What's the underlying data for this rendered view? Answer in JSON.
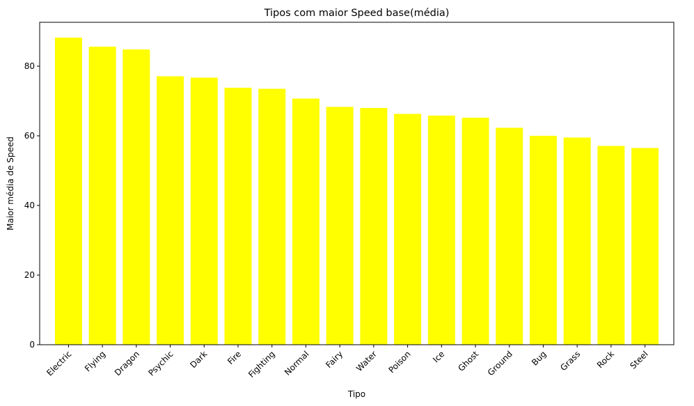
{
  "chart_data": {
    "type": "bar",
    "title": "Tipos com maior Speed base(média)",
    "xlabel": "Tipo",
    "ylabel": "Maior média de Speed",
    "categories": [
      "Electric",
      "Flying",
      "Dragon",
      "Psychic",
      "Dark",
      "Fire",
      "Fighting",
      "Normal",
      "Fairy",
      "Water",
      "Poison",
      "Ice",
      "Ghost",
      "Ground",
      "Bug",
      "Grass",
      "Rock",
      "Steel"
    ],
    "values": [
      88.2,
      85.6,
      84.8,
      77.1,
      76.7,
      73.8,
      73.5,
      70.7,
      68.3,
      68.0,
      66.3,
      65.8,
      65.2,
      62.3,
      60.0,
      59.5,
      57.1,
      56.5
    ],
    "ylim": [
      0,
      92.6
    ],
    "yticks": [
      0,
      20,
      40,
      60,
      80
    ],
    "bar_color": "#ffff00",
    "grid": false,
    "xtick_rotation_deg": 45
  }
}
